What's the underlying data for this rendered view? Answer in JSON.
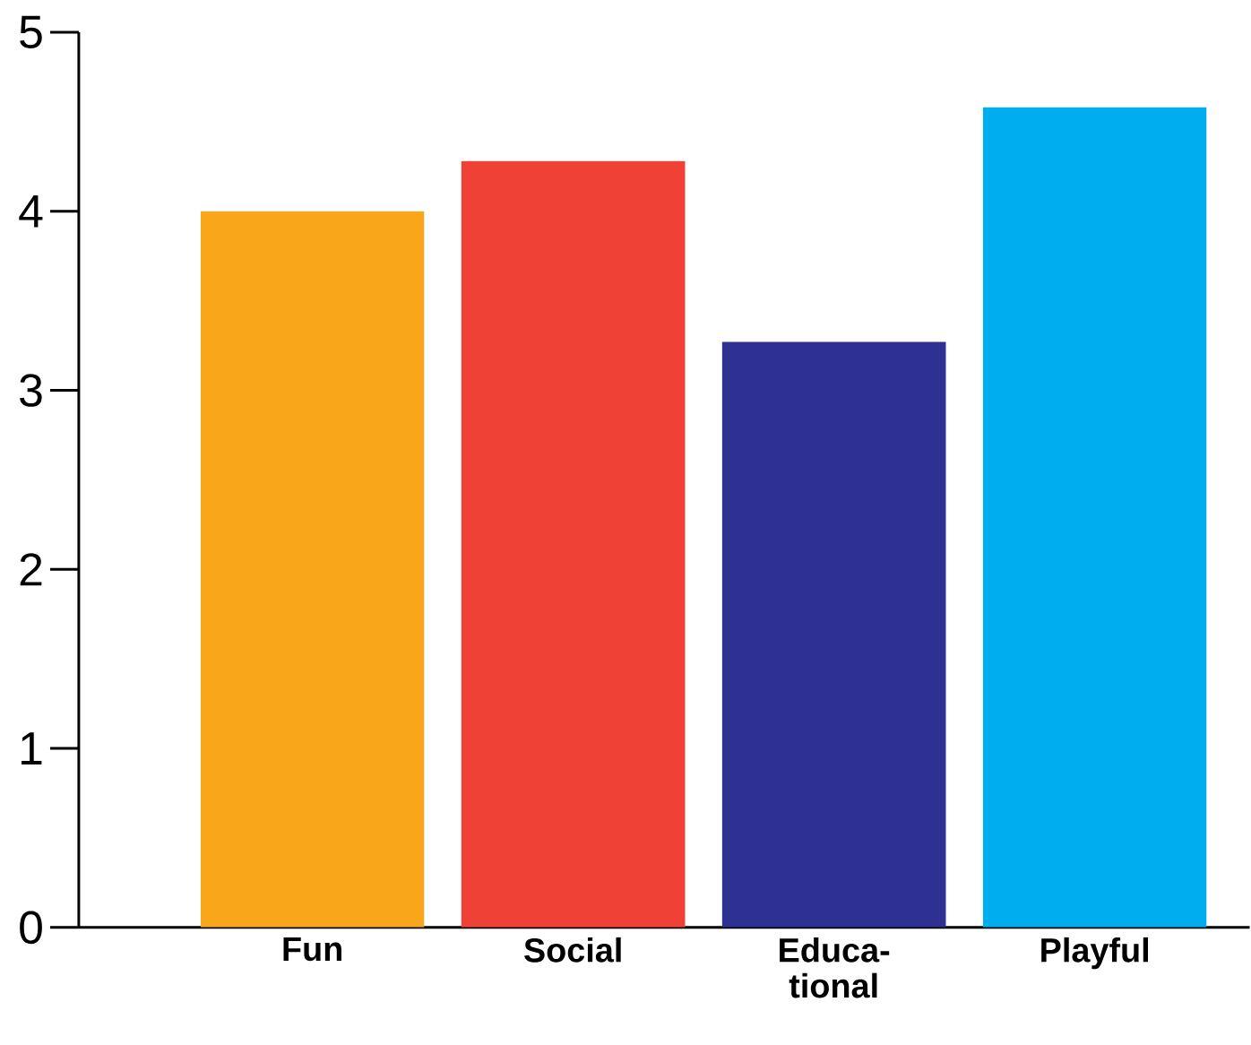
{
  "chart_data": {
    "type": "bar",
    "categories": [
      "Fun",
      "Social",
      "Educa-tional",
      "Playful"
    ],
    "values": [
      4.0,
      4.28,
      3.27,
      4.58
    ],
    "colors": [
      "#f9a61a",
      "#ef4136",
      "#2e3192",
      "#00aeef"
    ],
    "ylim": [
      0,
      5
    ],
    "yticks": [
      0,
      1,
      2,
      3,
      4,
      5
    ]
  }
}
